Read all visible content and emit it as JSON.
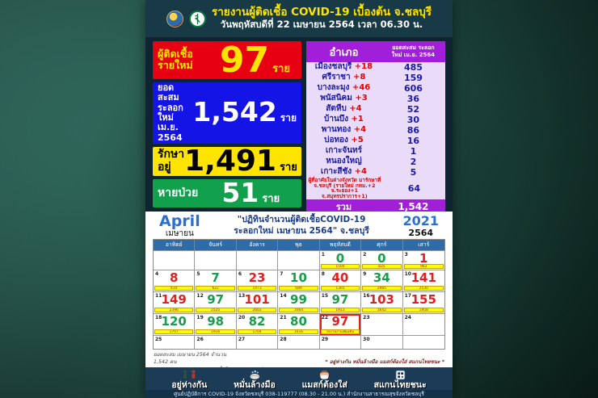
{
  "colors": {
    "accent_yellow": "#ffe400",
    "box_red": "#e60012",
    "box_blue": "#1414e6",
    "box_yellow": "#ffe400",
    "box_green": "#11a14c",
    "table_purple": "#a21fd9",
    "table_bg": "#eadcf8",
    "calendar_header_blue": "#2d6ca8",
    "case_up_red": "#e02020",
    "case_down_green": "#189e4a",
    "tests_bar_yellow": "#ffff00",
    "bottom_bar_navy": "#1c3b56",
    "background_teal": "#1d4a40"
  },
  "header": {
    "title": "รายงานผู้ติดเชื้อ COVID-19 เบื้องต้น จ.ชลบุรี",
    "subtitle": "วันพฤหัสบดีที่ 22 เมษายน 2564 เวลา 06.30 น."
  },
  "stats": {
    "new_cases": {
      "label1": "ผู้ติดเชื้อ",
      "label2": "รายใหม่",
      "value": "97",
      "unit": "ราย"
    },
    "cumulative": {
      "label1": "ยอดสะสม",
      "label2": "ระลอกใหม่",
      "label3": "เม.ย. 2564",
      "value": "1,542",
      "unit": "ราย"
    },
    "in_treatment": {
      "label": "รักษาอยู่",
      "value": "1,491",
      "unit": "ราย"
    },
    "recovered": {
      "label": "หายป่วย",
      "value": "51",
      "unit": "ราย"
    }
  },
  "district_table": {
    "header_col1": "อำเภอ",
    "header_col2_line1": "ยอดสะสม ระลอก",
    "header_col2_line2": "ใหม่ เม.ย. 2564",
    "rows": [
      {
        "name": "เมืองชลบุรี",
        "delta": "+18",
        "value": "485"
      },
      {
        "name": "ศรีราชา",
        "delta": "+8",
        "value": "159"
      },
      {
        "name": "บางละมุง",
        "delta": "+46",
        "value": "606"
      },
      {
        "name": "พนัสนิคม",
        "delta": "+3",
        "value": "36"
      },
      {
        "name": "สัตหีบ",
        "delta": "+4",
        "value": "52"
      },
      {
        "name": "บ้านบึง",
        "delta": "+1",
        "value": "30"
      },
      {
        "name": "พานทอง",
        "delta": "+4",
        "value": "86"
      },
      {
        "name": "บ่อทอง",
        "delta": "+5",
        "value": "16"
      },
      {
        "name": "เกาะจันทร์",
        "delta": "",
        "value": "1"
      },
      {
        "name": "หนองใหญ่",
        "delta": "",
        "value": "2"
      },
      {
        "name": "เกาะสีชัง",
        "delta": "+4",
        "value": "5"
      },
      {
        "name": "ผู้ที่อาศัยในต่างจังหวัด มารักษาที่ จ.ชลบุรี (รายใหม่ กทม.+2 จ.ระยอง+1 จ.สมุทรปราการ+1)",
        "delta": "",
        "value": "64",
        "special": true
      }
    ],
    "total_label": "รวม",
    "total_value": "1,542"
  },
  "calendar": {
    "month_en": "April",
    "month_th": "เมษายน",
    "year_en": "2021",
    "year_th": "2564",
    "title_line1": "\"ปฏิทินจำนวนผู้ติดเชื้อCOVID-19",
    "title_line2": "ระลอกใหม่ เมษายน 2564\" จ.ชลบุรี",
    "day_headers": [
      "อาทิตย์",
      "จันทร์",
      "อังคาร",
      "พุธ",
      "พฤหัสบดี",
      "ศุกร์",
      "เสาร์"
    ],
    "weeks": [
      [
        {},
        {},
        {},
        {},
        {
          "day": "1",
          "cases": "0",
          "trend": "down",
          "tests": "1500"
        },
        {
          "day": "2",
          "cases": "0",
          "trend": "down",
          "tests": "825"
        },
        {
          "day": "3",
          "cases": "1",
          "trend": "up",
          "tests": "963"
        }
      ],
      [
        {
          "day": "4",
          "cases": "8",
          "trend": "up",
          "tests": "430"
        },
        {
          "day": "5",
          "cases": "7",
          "trend": "down",
          "tests": "622"
        },
        {
          "day": "6",
          "cases": "23",
          "trend": "up",
          "tests": "1473"
        },
        {
          "day": "7",
          "cases": "10",
          "trend": "down",
          "tests": "689"
        },
        {
          "day": "8",
          "cases": "40",
          "trend": "up",
          "tests": "1305"
        },
        {
          "day": "9",
          "cases": "34",
          "trend": "down",
          "tests": "2985"
        },
        {
          "day": "10",
          "cases": "141",
          "trend": "up",
          "tests": "2530"
        }
      ],
      [
        {
          "day": "11",
          "cases": "149",
          "trend": "up",
          "tests": "2396"
        },
        {
          "day": "12",
          "cases": "97",
          "trend": "down",
          "tests": "2525"
        },
        {
          "day": "13",
          "cases": "101",
          "trend": "up",
          "tests": "2602"
        },
        {
          "day": "14",
          "cases": "99",
          "trend": "down",
          "tests": "1664"
        },
        {
          "day": "15",
          "cases": "97",
          "trend": "down",
          "tests": "1913"
        },
        {
          "day": "16",
          "cases": "103",
          "trend": "up",
          "tests": "1642"
        },
        {
          "day": "17",
          "cases": "155",
          "trend": "up",
          "tests": "1958"
        }
      ],
      [
        {
          "day": "18",
          "cases": "120",
          "trend": "down",
          "tests": "1707"
        },
        {
          "day": "19",
          "cases": "98",
          "trend": "down",
          "tests": "1916"
        },
        {
          "day": "20",
          "cases": "82",
          "trend": "down",
          "tests": "1704"
        },
        {
          "day": "21",
          "cases": "80",
          "trend": "down",
          "tests": "1616"
        },
        {
          "day": "22",
          "cases": "97",
          "trend": "up",
          "tests_note": "รอรายงานเพิ่มเติม",
          "highlight": true
        },
        {
          "day": "23"
        },
        {
          "day": "24"
        }
      ],
      [
        {
          "day": "25"
        },
        {
          "day": "26"
        },
        {
          "day": "27"
        },
        {
          "day": "28"
        },
        {
          "day": "29"
        },
        {
          "day": "30"
        },
        {}
      ]
    ]
  },
  "footer_notes": {
    "cumulative_note": "ยอดสะสม เมษายน 2564 จำนวน 1,542 คน",
    "legend_label": "จำนวนการตรวจหาเชื้อโควิด-19",
    "slogan": "* อยู่ห่างกัน หมั่นล้างมือ แมสก์ต้องใส่ สแกนไทยชนะ *",
    "hotline": "ศูนย์ปฏิบัติการ COVID-19 จังหวัดชลบุรี 038-119777 (08.30 - 21.00 น.)",
    "facebook": "สำนักงานสาธารณสุขจังหวัดชลบุรี"
  },
  "bottom_bar": {
    "items": [
      {
        "label": "อยู่ห่างกัน",
        "icon": "distancing-icon"
      },
      {
        "label": "หมั่นล้างมือ",
        "icon": "handwash-icon"
      },
      {
        "label": "แมสก์ต้องใส่",
        "icon": "mask-icon"
      },
      {
        "label": "สแกนไทยชนะ",
        "icon": "qr-scan-icon"
      }
    ],
    "info": "ศูนย์ปฏิบัติการ COVID-19 จังหวัดชลบุรี 038-119777 (08.30 - 21.00 น.)   สำนักงานสาธารณสุขจังหวัดชลบุรี"
  }
}
